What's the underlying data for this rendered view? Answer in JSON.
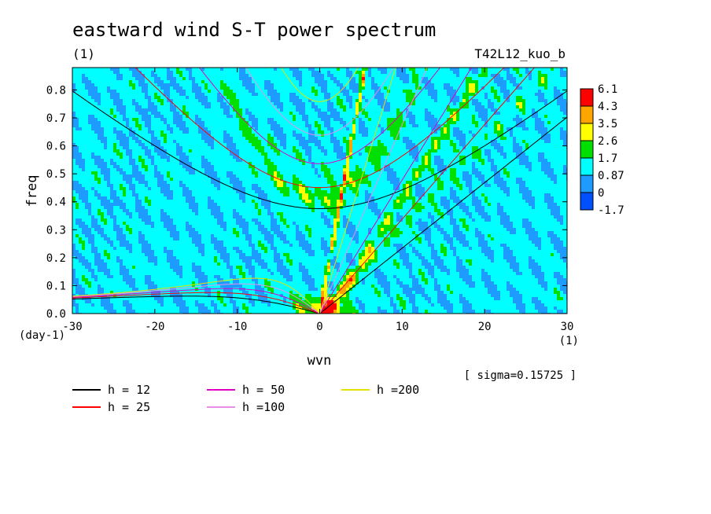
{
  "chart_data": {
    "type": "heatmap",
    "title": "eastward wind S-T power spectrum",
    "subtitle": "(1)",
    "run_label": "T42L12_kuo_b",
    "xlabel": "wvn",
    "ylabel": "freq",
    "x_unit": "(1)",
    "y_unit": "(day-1)",
    "xlim": [
      -30,
      30
    ],
    "ylim": [
      0,
      0.88
    ],
    "xticks": [
      "-30",
      "-20",
      "-10",
      "0",
      "10",
      "20",
      "30"
    ],
    "yticks": [
      "0.0",
      "0.1",
      "0.2",
      "0.3",
      "0.4",
      "0.5",
      "0.6",
      "0.7",
      "0.8"
    ],
    "note": "[ sigma=0.15725 ]",
    "colorbar": {
      "levels": [
        "6.1",
        "4.3",
        "3.5",
        "2.6",
        "1.7",
        "0.87",
        "0",
        "-1.7"
      ],
      "colors": [
        "#ff0000",
        "#ffa500",
        "#ffff00",
        "#00e000",
        "#00ffff",
        "#1e9bff",
        "#0050ff"
      ]
    },
    "dispersion_curves": [
      {
        "name": "h = 12",
        "h": 12,
        "color": "#000000"
      },
      {
        "name": "h = 25",
        "h": 25,
        "color": "#ff0000"
      },
      {
        "name": "h = 50",
        "h": 50,
        "color": "#e000c0"
      },
      {
        "name": "h =100",
        "h": 100,
        "color": "#e890e8"
      },
      {
        "name": "h =200",
        "h": 200,
        "color": "#e8e000"
      }
    ]
  }
}
